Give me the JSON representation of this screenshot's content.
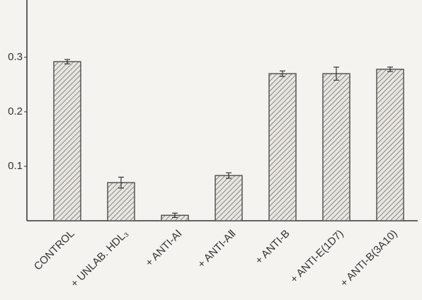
{
  "chart_data": {
    "type": "bar",
    "categories": [
      "CONTROL",
      "+ UNLAB. HDL₃",
      "+ ANTI-AⅠ",
      "+ ANTI-AⅡ",
      "+ ANTI-B",
      "+ ANTI-E(1D7)",
      "+ ANTI-B(3A10)"
    ],
    "values": [
      0.292,
      0.07,
      0.01,
      0.083,
      0.27,
      0.27,
      0.278
    ],
    "errors": [
      0.004,
      0.01,
      0.004,
      0.005,
      0.005,
      0.012,
      0.004
    ],
    "color": "#555555",
    "ylim": [
      0,
      0.4
    ],
    "yticks": [
      0.1,
      0.2,
      0.3
    ],
    "grid": false
  }
}
